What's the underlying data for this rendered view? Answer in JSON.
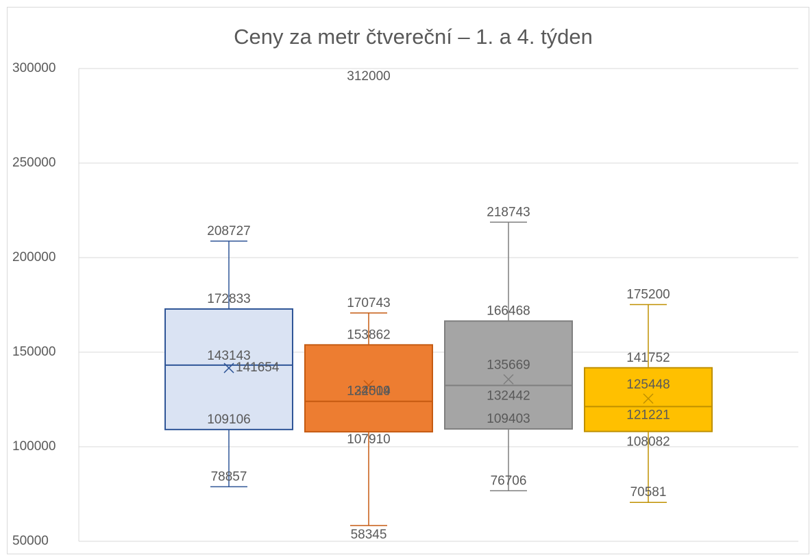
{
  "chart_data": {
    "type": "box",
    "title": "Ceny za metr čtvereční – 1. a 4. týden",
    "ylim": [
      50000,
      300000
    ],
    "yticks": [
      50000,
      100000,
      150000,
      200000,
      250000,
      300000
    ],
    "grid": true,
    "series": [
      {
        "color": "#dae3f3",
        "edge_color": "#2f5597",
        "min": 78857,
        "q1": 109106,
        "median": 143143,
        "q3": 172833,
        "max": 208727,
        "mean": 141654,
        "outliers": []
      },
      {
        "color": "#ed7d31",
        "edge_color": "#c55a11",
        "min": 58345,
        "q1": 107910,
        "median": 124014,
        "q3": 153862,
        "max": 170743,
        "mean": 132509,
        "outliers": [
          312000
        ]
      },
      {
        "color": "#a5a5a5",
        "edge_color": "#7f7f7f",
        "min": 76706,
        "q1": 109403,
        "median": 132442,
        "q3": 166468,
        "max": 218743,
        "mean": 135669,
        "outliers": []
      },
      {
        "color": "#ffc000",
        "edge_color": "#bf9000",
        "min": 70581,
        "q1": 108082,
        "median": 121221,
        "q3": 141752,
        "max": 175200,
        "mean": 125448,
        "outliers": []
      }
    ]
  }
}
